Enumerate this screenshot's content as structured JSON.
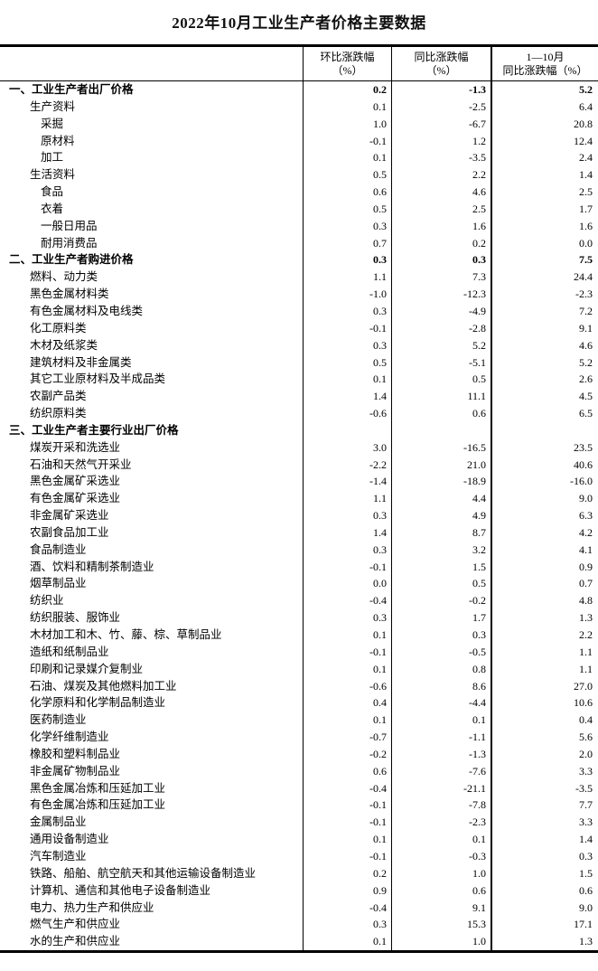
{
  "page": {
    "title": "2022年10月工业生产者价格主要数据"
  },
  "table": {
    "header": {
      "mom": {
        "line1": "环比涨跌幅",
        "line2": "（%）"
      },
      "yoy": {
        "line1": "同比涨跌幅",
        "line2": "（%）"
      },
      "ytd": {
        "line1": "1—10月",
        "line2": "同比涨跌幅（%）"
      }
    },
    "rows": [
      {
        "label": "一、工业生产者出厂价格",
        "indent": 0,
        "bold": true,
        "values": [
          "0.2",
          "-1.3",
          "5.2"
        ]
      },
      {
        "label": "生产资料",
        "indent": 1,
        "bold": false,
        "values": [
          "0.1",
          "-2.5",
          "6.4"
        ]
      },
      {
        "label": "采掘",
        "indent": 2,
        "bold": false,
        "values": [
          "1.0",
          "-6.7",
          "20.8"
        ]
      },
      {
        "label": "原材料",
        "indent": 2,
        "bold": false,
        "values": [
          "-0.1",
          "1.2",
          "12.4"
        ]
      },
      {
        "label": "加工",
        "indent": 2,
        "bold": false,
        "values": [
          "0.1",
          "-3.5",
          "2.4"
        ]
      },
      {
        "label": "生活资料",
        "indent": 1,
        "bold": false,
        "values": [
          "0.5",
          "2.2",
          "1.4"
        ]
      },
      {
        "label": "食品",
        "indent": 2,
        "bold": false,
        "values": [
          "0.6",
          "4.6",
          "2.5"
        ]
      },
      {
        "label": "衣着",
        "indent": 2,
        "bold": false,
        "values": [
          "0.5",
          "2.5",
          "1.7"
        ]
      },
      {
        "label": "一般日用品",
        "indent": 2,
        "bold": false,
        "values": [
          "0.3",
          "1.6",
          "1.6"
        ]
      },
      {
        "label": "耐用消费品",
        "indent": 2,
        "bold": false,
        "values": [
          "0.7",
          "0.2",
          "0.0"
        ]
      },
      {
        "label": "二、工业生产者购进价格",
        "indent": 0,
        "bold": true,
        "values": [
          "0.3",
          "0.3",
          "7.5"
        ]
      },
      {
        "label": "燃料、动力类",
        "indent": 1,
        "bold": false,
        "values": [
          "1.1",
          "7.3",
          "24.4"
        ]
      },
      {
        "label": "黑色金属材料类",
        "indent": 1,
        "bold": false,
        "values": [
          "-1.0",
          "-12.3",
          "-2.3"
        ]
      },
      {
        "label": "有色金属材料及电线类",
        "indent": 1,
        "bold": false,
        "values": [
          "0.3",
          "-4.9",
          "7.2"
        ]
      },
      {
        "label": "化工原料类",
        "indent": 1,
        "bold": false,
        "values": [
          "-0.1",
          "-2.8",
          "9.1"
        ]
      },
      {
        "label": "木材及纸浆类",
        "indent": 1,
        "bold": false,
        "values": [
          "0.3",
          "5.2",
          "4.6"
        ]
      },
      {
        "label": "建筑材料及非金属类",
        "indent": 1,
        "bold": false,
        "values": [
          "0.5",
          "-5.1",
          "5.2"
        ]
      },
      {
        "label": "其它工业原材料及半成品类",
        "indent": 1,
        "bold": false,
        "values": [
          "0.1",
          "0.5",
          "2.6"
        ]
      },
      {
        "label": "农副产品类",
        "indent": 1,
        "bold": false,
        "values": [
          "1.4",
          "11.1",
          "4.5"
        ]
      },
      {
        "label": "纺织原料类",
        "indent": 1,
        "bold": false,
        "values": [
          "-0.6",
          "0.6",
          "6.5"
        ]
      },
      {
        "label": "三、工业生产者主要行业出厂价格",
        "indent": 0,
        "bold": true,
        "values": [
          "",
          "",
          ""
        ]
      },
      {
        "label": "煤炭开采和洗选业",
        "indent": 1,
        "bold": false,
        "values": [
          "3.0",
          "-16.5",
          "23.5"
        ]
      },
      {
        "label": "石油和天然气开采业",
        "indent": 1,
        "bold": false,
        "values": [
          "-2.2",
          "21.0",
          "40.6"
        ]
      },
      {
        "label": "黑色金属矿采选业",
        "indent": 1,
        "bold": false,
        "values": [
          "-1.4",
          "-18.9",
          "-16.0"
        ]
      },
      {
        "label": "有色金属矿采选业",
        "indent": 1,
        "bold": false,
        "values": [
          "1.1",
          "4.4",
          "9.0"
        ]
      },
      {
        "label": "非金属矿采选业",
        "indent": 1,
        "bold": false,
        "values": [
          "0.3",
          "4.9",
          "6.3"
        ]
      },
      {
        "label": "农副食品加工业",
        "indent": 1,
        "bold": false,
        "values": [
          "1.4",
          "8.7",
          "4.2"
        ]
      },
      {
        "label": "食品制造业",
        "indent": 1,
        "bold": false,
        "values": [
          "0.3",
          "3.2",
          "4.1"
        ]
      },
      {
        "label": "酒、饮料和精制茶制造业",
        "indent": 1,
        "bold": false,
        "values": [
          "-0.1",
          "1.5",
          "0.9"
        ]
      },
      {
        "label": "烟草制品业",
        "indent": 1,
        "bold": false,
        "values": [
          "0.0",
          "0.5",
          "0.7"
        ]
      },
      {
        "label": "纺织业",
        "indent": 1,
        "bold": false,
        "values": [
          "-0.4",
          "-0.2",
          "4.8"
        ]
      },
      {
        "label": "纺织服装、服饰业",
        "indent": 1,
        "bold": false,
        "values": [
          "0.3",
          "1.7",
          "1.3"
        ]
      },
      {
        "label": "木材加工和木、竹、藤、棕、草制品业",
        "indent": 1,
        "bold": false,
        "values": [
          "0.1",
          "0.3",
          "2.2"
        ]
      },
      {
        "label": "造纸和纸制品业",
        "indent": 1,
        "bold": false,
        "values": [
          "-0.1",
          "-0.5",
          "1.1"
        ]
      },
      {
        "label": "印刷和记录媒介复制业",
        "indent": 1,
        "bold": false,
        "values": [
          "0.1",
          "0.8",
          "1.1"
        ]
      },
      {
        "label": "石油、煤炭及其他燃料加工业",
        "indent": 1,
        "bold": false,
        "values": [
          "-0.6",
          "8.6",
          "27.0"
        ]
      },
      {
        "label": "化学原料和化学制品制造业",
        "indent": 1,
        "bold": false,
        "values": [
          "0.4",
          "-4.4",
          "10.6"
        ]
      },
      {
        "label": "医药制造业",
        "indent": 1,
        "bold": false,
        "values": [
          "0.1",
          "0.1",
          "0.4"
        ]
      },
      {
        "label": "化学纤维制造业",
        "indent": 1,
        "bold": false,
        "values": [
          "-0.7",
          "-1.1",
          "5.6"
        ]
      },
      {
        "label": "橡胶和塑料制品业",
        "indent": 1,
        "bold": false,
        "values": [
          "-0.2",
          "-1.3",
          "2.0"
        ]
      },
      {
        "label": "非金属矿物制品业",
        "indent": 1,
        "bold": false,
        "values": [
          "0.6",
          "-7.6",
          "3.3"
        ]
      },
      {
        "label": "黑色金属冶炼和压延加工业",
        "indent": 1,
        "bold": false,
        "values": [
          "-0.4",
          "-21.1",
          "-3.5"
        ]
      },
      {
        "label": "有色金属冶炼和压延加工业",
        "indent": 1,
        "bold": false,
        "values": [
          "-0.1",
          "-7.8",
          "7.7"
        ]
      },
      {
        "label": "金属制品业",
        "indent": 1,
        "bold": false,
        "values": [
          "-0.1",
          "-2.3",
          "3.3"
        ]
      },
      {
        "label": "通用设备制造业",
        "indent": 1,
        "bold": false,
        "values": [
          "0.1",
          "0.1",
          "1.4"
        ]
      },
      {
        "label": "汽车制造业",
        "indent": 1,
        "bold": false,
        "values": [
          "-0.1",
          "-0.3",
          "0.3"
        ]
      },
      {
        "label": "铁路、船舶、航空航天和其他运输设备制造业",
        "indent": 1,
        "bold": false,
        "values": [
          "0.2",
          "1.0",
          "1.5"
        ]
      },
      {
        "label": "计算机、通信和其他电子设备制造业",
        "indent": 1,
        "bold": false,
        "values": [
          "0.9",
          "0.6",
          "0.6"
        ]
      },
      {
        "label": "电力、热力生产和供应业",
        "indent": 1,
        "bold": false,
        "values": [
          "-0.4",
          "9.1",
          "9.0"
        ]
      },
      {
        "label": "燃气生产和供应业",
        "indent": 1,
        "bold": false,
        "values": [
          "0.3",
          "15.3",
          "17.1"
        ]
      },
      {
        "label": "水的生产和供应业",
        "indent": 1,
        "bold": false,
        "values": [
          "0.1",
          "1.0",
          "1.3"
        ]
      }
    ]
  }
}
